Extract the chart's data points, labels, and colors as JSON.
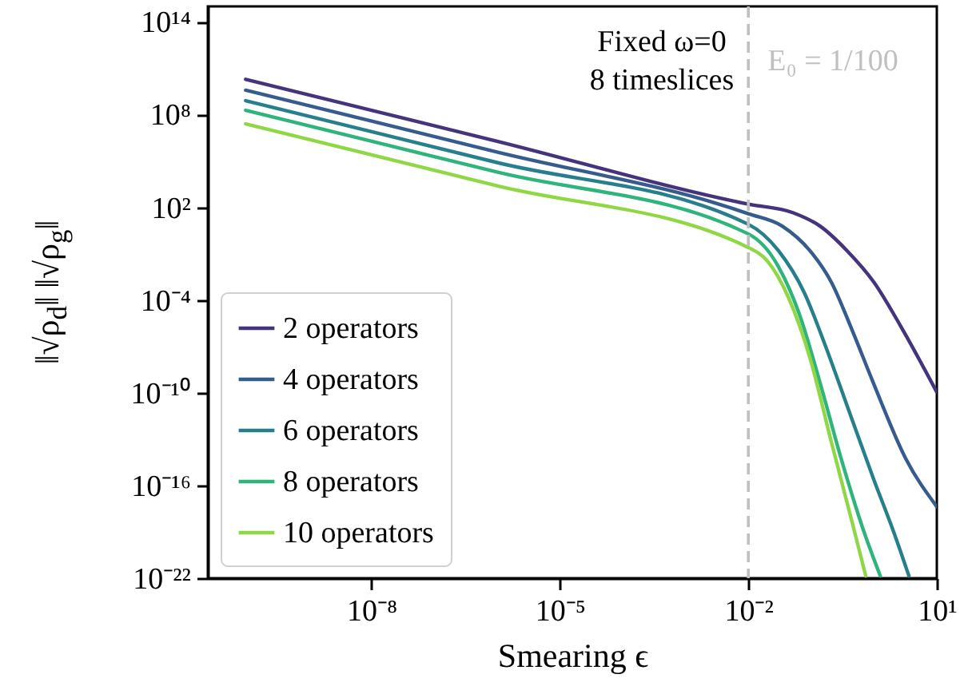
{
  "chart_data": {
    "type": "line",
    "xlabel": "Smearing ϵ",
    "ylabel": "‖√ρ$_{d}$‖ ‖√ρ$_{g}$‖",
    "annotations": [
      "Fixed ω=0",
      "8 timeslices"
    ],
    "log": "xy",
    "grid": false,
    "legend": "bottom left",
    "line_style": "solid",
    "marker": "none",
    "xlim": [
      2.5e-11,
      10
    ],
    "ylim": [
      1e-22,
      1000000000000000.0
    ],
    "xticks": [
      {
        "value": 1e-08,
        "label": "10⁻⁸"
      },
      {
        "value": 1e-05,
        "label": "10⁻⁵"
      },
      {
        "value": 0.01,
        "label": "10⁻²"
      },
      {
        "value": 10,
        "label": "10¹"
      }
    ],
    "yticks": [
      {
        "value": 1e-22,
        "label": "10⁻²²"
      },
      {
        "value": 1e-16,
        "label": "10⁻¹⁶"
      },
      {
        "value": 1e-10,
        "label": "10⁻¹⁰"
      },
      {
        "value": 0.0001,
        "label": "10⁻⁴"
      },
      {
        "value": 100,
        "label": "10²"
      },
      {
        "value": 100000000.0,
        "label": "10⁸"
      },
      {
        "value": 100000000000000.0,
        "label": "10¹⁴"
      }
    ],
    "ref_lines": [
      {
        "axis": "x",
        "value": 0.01,
        "label": "E₀ = 1/100",
        "color": "#c0c0c0",
        "line_style": "dashed"
      }
    ],
    "series": [
      {
        "name": "2 operators",
        "color": "#46337e",
        "x": [
          1e-10,
          1e-06,
          0.01,
          0.052,
          0.14,
          0.37,
          1.0,
          2.6,
          10
        ],
        "values": [
          19000000000.0,
          1900000.0,
          160,
          44,
          5.9,
          0.16,
          0.0014,
          2.4e-06,
          1.1e-10
        ]
      },
      {
        "name": "4 operators",
        "color": "#365c8d",
        "x": [
          1e-10,
          1e-06,
          0.01,
          0.035,
          0.095,
          0.21,
          0.45,
          0.99,
          3.2,
          10
        ],
        "values": [
          3800000000.0,
          380000.0,
          38,
          5.9,
          0.16,
          0.0014,
          1.1e-06,
          3.8e-10,
          5.5e-15,
          4.3e-18
        ]
      },
      {
        "name": "6 operators",
        "color": "#277f8e",
        "x": [
          1e-10,
          1e-06,
          0.01,
          0.03,
          0.078,
          0.17,
          0.37,
          0.99,
          2.1,
          3.6
        ],
        "values": [
          790000000.0,
          79000.0,
          7.9,
          0.16,
          0.00029,
          1e-07,
          1.6e-11,
          2.5e-16,
          7.9e-20,
          1.4e-22
        ]
      },
      {
        "name": "8 operators",
        "color": "#2fb47c",
        "x": [
          1e-10,
          1e-06,
          0.01,
          0.03,
          0.065,
          0.14,
          0.3,
          0.66,
          1.26
        ],
        "values": [
          190000000.0,
          19000.0,
          1.9,
          0.015,
          1.2e-05,
          3.8e-10,
          5.5e-15,
          1.8e-19,
          1.4e-22
        ]
      },
      {
        "name": "10 operators",
        "color": "#8fd744",
        "x": [
          1e-10,
          1e-06,
          0.01,
          0.02,
          0.044,
          0.095,
          0.21,
          0.45,
          0.74
        ],
        "values": [
          25000000.0,
          2500,
          0.25,
          0.034,
          0.00013,
          2e-08,
          6.3e-14,
          4e-19,
          1.4e-22
        ]
      }
    ]
  }
}
